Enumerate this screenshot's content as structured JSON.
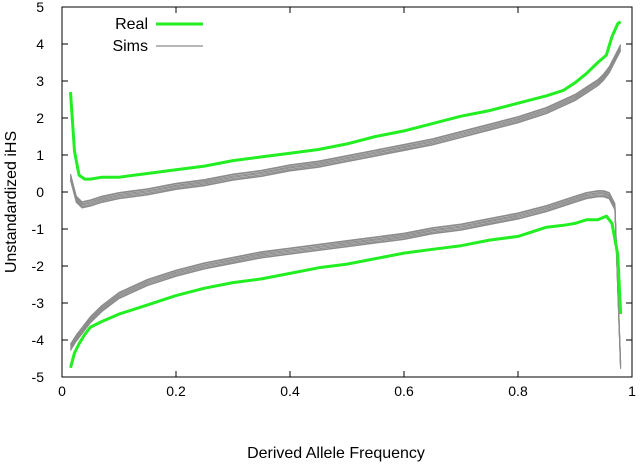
{
  "chart_data": {
    "type": "line",
    "xlabel": "Derived Allele Frequency",
    "ylabel": "Unstandardized iHS",
    "xlim": [
      0,
      1
    ],
    "ylim": [
      -5,
      5
    ],
    "x_ticks": [
      "0",
      "0.2",
      "0.4",
      "0.6",
      "0.8",
      "1"
    ],
    "y_ticks": [
      "5",
      "4",
      "3",
      "2",
      "1",
      "0",
      "-1",
      "-2",
      "-3",
      "-4",
      "-5"
    ],
    "grid": false,
    "legend_position": "top-left",
    "colors": {
      "real": "#22ee22",
      "sims": "#8c8c8c",
      "axis": "#000000"
    },
    "series": [
      {
        "name": "Real",
        "x": [
          0.015,
          0.022,
          0.03,
          0.04,
          0.05,
          0.07,
          0.1,
          0.15,
          0.2,
          0.25,
          0.3,
          0.35,
          0.4,
          0.45,
          0.5,
          0.55,
          0.6,
          0.65,
          0.7,
          0.75,
          0.8,
          0.85,
          0.88,
          0.9,
          0.92,
          0.94,
          0.955,
          0.965,
          0.975,
          0.98
        ],
        "upper": [
          2.7,
          1.1,
          0.45,
          0.35,
          0.35,
          0.4,
          0.4,
          0.5,
          0.6,
          0.7,
          0.85,
          0.95,
          1.05,
          1.15,
          1.3,
          1.5,
          1.65,
          1.85,
          2.05,
          2.2,
          2.4,
          2.6,
          2.75,
          2.95,
          3.2,
          3.5,
          3.7,
          4.2,
          4.55,
          4.6
        ],
        "lower": [
          -4.75,
          -4.35,
          -4.1,
          -3.85,
          -3.65,
          -3.5,
          -3.3,
          -3.05,
          -2.8,
          -2.6,
          -2.45,
          -2.35,
          -2.2,
          -2.05,
          -1.95,
          -1.8,
          -1.65,
          -1.55,
          -1.45,
          -1.3,
          -1.2,
          -0.95,
          -0.9,
          -0.85,
          -0.75,
          -0.75,
          -0.65,
          -0.85,
          -1.7,
          -3.3
        ]
      },
      {
        "name": "Sims",
        "x": [
          0.015,
          0.025,
          0.035,
          0.05,
          0.07,
          0.1,
          0.15,
          0.2,
          0.25,
          0.3,
          0.35,
          0.4,
          0.45,
          0.5,
          0.55,
          0.6,
          0.65,
          0.7,
          0.75,
          0.8,
          0.85,
          0.9,
          0.92,
          0.94,
          0.95,
          0.96,
          0.97,
          0.98
        ],
        "upper": [
          0.4,
          -0.2,
          -0.35,
          -0.3,
          -0.2,
          -0.1,
          0.0,
          0.15,
          0.25,
          0.4,
          0.5,
          0.65,
          0.75,
          0.9,
          1.05,
          1.2,
          1.35,
          1.55,
          1.75,
          1.95,
          2.2,
          2.55,
          2.75,
          2.95,
          3.1,
          3.3,
          3.6,
          3.9
        ],
        "lower": [
          -4.2,
          -3.95,
          -3.75,
          -3.45,
          -3.15,
          -2.8,
          -2.45,
          -2.2,
          -2.0,
          -1.85,
          -1.7,
          -1.6,
          -1.5,
          -1.4,
          -1.3,
          -1.2,
          -1.05,
          -0.95,
          -0.8,
          -0.65,
          -0.45,
          -0.2,
          -0.1,
          -0.05,
          -0.05,
          -0.1,
          -0.4,
          -4.7
        ]
      }
    ]
  }
}
